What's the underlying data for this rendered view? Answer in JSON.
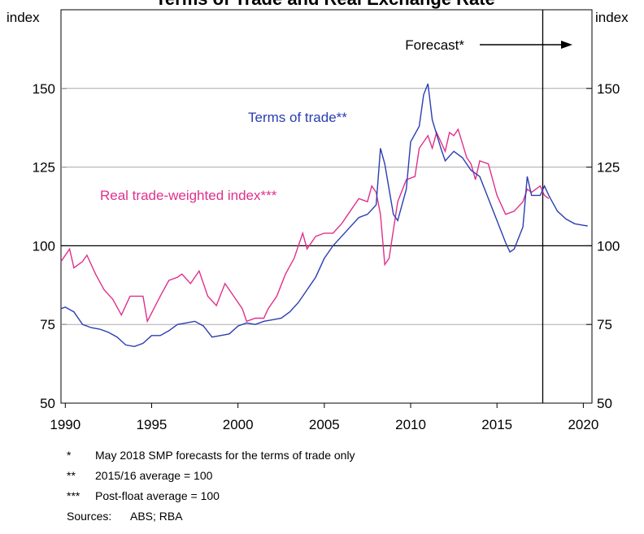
{
  "chart_data": {
    "type": "line",
    "title": "Terms of Trade and Real Exchange Rate",
    "ylabel": "index",
    "y2label": "index",
    "xlim": [
      1989.75,
      2020.5
    ],
    "xticks": [
      1990,
      1995,
      2000,
      2005,
      2010,
      2015,
      2020
    ],
    "ylim": [
      50,
      175
    ],
    "yticks": [
      50,
      75,
      100,
      125,
      150
    ],
    "y2lim": [
      50,
      175
    ],
    "y2ticks": [
      50,
      75,
      100,
      125,
      150
    ],
    "grid": true,
    "reference_line": 100,
    "forecast_start": 2017.65,
    "annotations": {
      "forecast": "Forecast*",
      "terms_of_trade": "Terms of trade**",
      "rtwi": "Real trade-weighted index***"
    },
    "series": [
      {
        "name": "Terms of trade",
        "color": "#2b3eb0",
        "x": [
          1989.75,
          1990,
          1990.5,
          1991,
          1991.5,
          1992,
          1992.5,
          1993,
          1993.5,
          1994,
          1994.5,
          1995,
          1995.5,
          1996,
          1996.5,
          1997,
          1997.5,
          1998,
          1998.5,
          1999,
          1999.5,
          2000,
          2000.5,
          2001,
          2001.5,
          2002,
          2002.5,
          2003,
          2003.5,
          2004,
          2004.5,
          2005,
          2005.5,
          2006,
          2006.5,
          2007,
          2007.5,
          2008,
          2008.25,
          2008.5,
          2009,
          2009.25,
          2009.75,
          2010,
          2010.5,
          2010.75,
          2011,
          2011.25,
          2011.75,
          2012,
          2012.5,
          2013,
          2013.5,
          2014,
          2014.5,
          2015,
          2015.5,
          2015.75,
          2016,
          2016.5,
          2016.75,
          2017,
          2017.5,
          2017.75,
          2018,
          2018.5,
          2019,
          2019.5,
          2020,
          2020.25
        ],
        "values": [
          80,
          80.5,
          79,
          75,
          74,
          73.5,
          72.5,
          71,
          68.5,
          68,
          69,
          71.5,
          71.5,
          73,
          75,
          75.5,
          76,
          74.5,
          71,
          71.5,
          72,
          74.5,
          75.5,
          75,
          76,
          76.5,
          77,
          79,
          82,
          86,
          90,
          96,
          100,
          103,
          106,
          109,
          110,
          113,
          131,
          126,
          110,
          108,
          118,
          133,
          138,
          148,
          151.5,
          140,
          131,
          127,
          130,
          128,
          124,
          122,
          115,
          108,
          101,
          98,
          99,
          106,
          122,
          116,
          116,
          119,
          116,
          111,
          108.5,
          107,
          106.5,
          106.3
        ]
      },
      {
        "name": "Real trade-weighted index",
        "color": "#e0308c",
        "x": [
          1989.75,
          1990.25,
          1990.5,
          1991,
          1991.25,
          1991.75,
          1992.25,
          1992.75,
          1993.25,
          1993.75,
          1994.25,
          1994.5,
          1994.75,
          1995.5,
          1996,
          1996.5,
          1996.75,
          1997.25,
          1997.75,
          1998.25,
          1998.75,
          1999.25,
          1999.75,
          2000.25,
          2000.5,
          2001,
          2001.5,
          2001.75,
          2002.25,
          2002.75,
          2003.25,
          2003.75,
          2004,
          2004.5,
          2005,
          2005.5,
          2006,
          2006.5,
          2007,
          2007.5,
          2007.75,
          2008,
          2008.25,
          2008.5,
          2008.75,
          2009.25,
          2009.75,
          2010.25,
          2010.5,
          2011,
          2011.25,
          2011.5,
          2012,
          2012.25,
          2012.5,
          2012.75,
          2013.25,
          2013.5,
          2013.75,
          2014,
          2014.5,
          2015,
          2015.5,
          2016,
          2016.5,
          2016.75,
          2017,
          2017.25,
          2017.5,
          2017.75,
          2018
        ],
        "values": [
          95,
          99,
          93,
          95,
          97,
          91,
          86,
          83,
          78,
          84,
          84,
          84,
          76,
          84,
          89,
          90,
          91,
          88,
          92,
          84,
          81,
          88,
          84,
          80,
          76,
          77,
          77,
          80,
          84,
          91,
          96,
          104,
          99,
          103,
          104,
          104,
          107,
          111,
          115,
          114,
          119,
          117,
          110,
          94,
          96,
          114,
          121,
          122,
          131,
          135,
          131,
          136,
          130,
          136,
          135,
          137,
          128,
          126,
          121,
          127,
          126,
          116,
          110,
          111,
          114,
          118,
          117,
          118,
          119,
          116,
          115
        ]
      }
    ]
  },
  "footnotes": [
    {
      "marker": "*",
      "text": "May 2018 SMP forecasts for the terms of trade only"
    },
    {
      "marker": "**",
      "text": "2015/16 average = 100"
    },
    {
      "marker": "***",
      "text": "Post-float average = 100"
    }
  ],
  "sources": {
    "label": "Sources:",
    "text": "ABS; RBA"
  }
}
